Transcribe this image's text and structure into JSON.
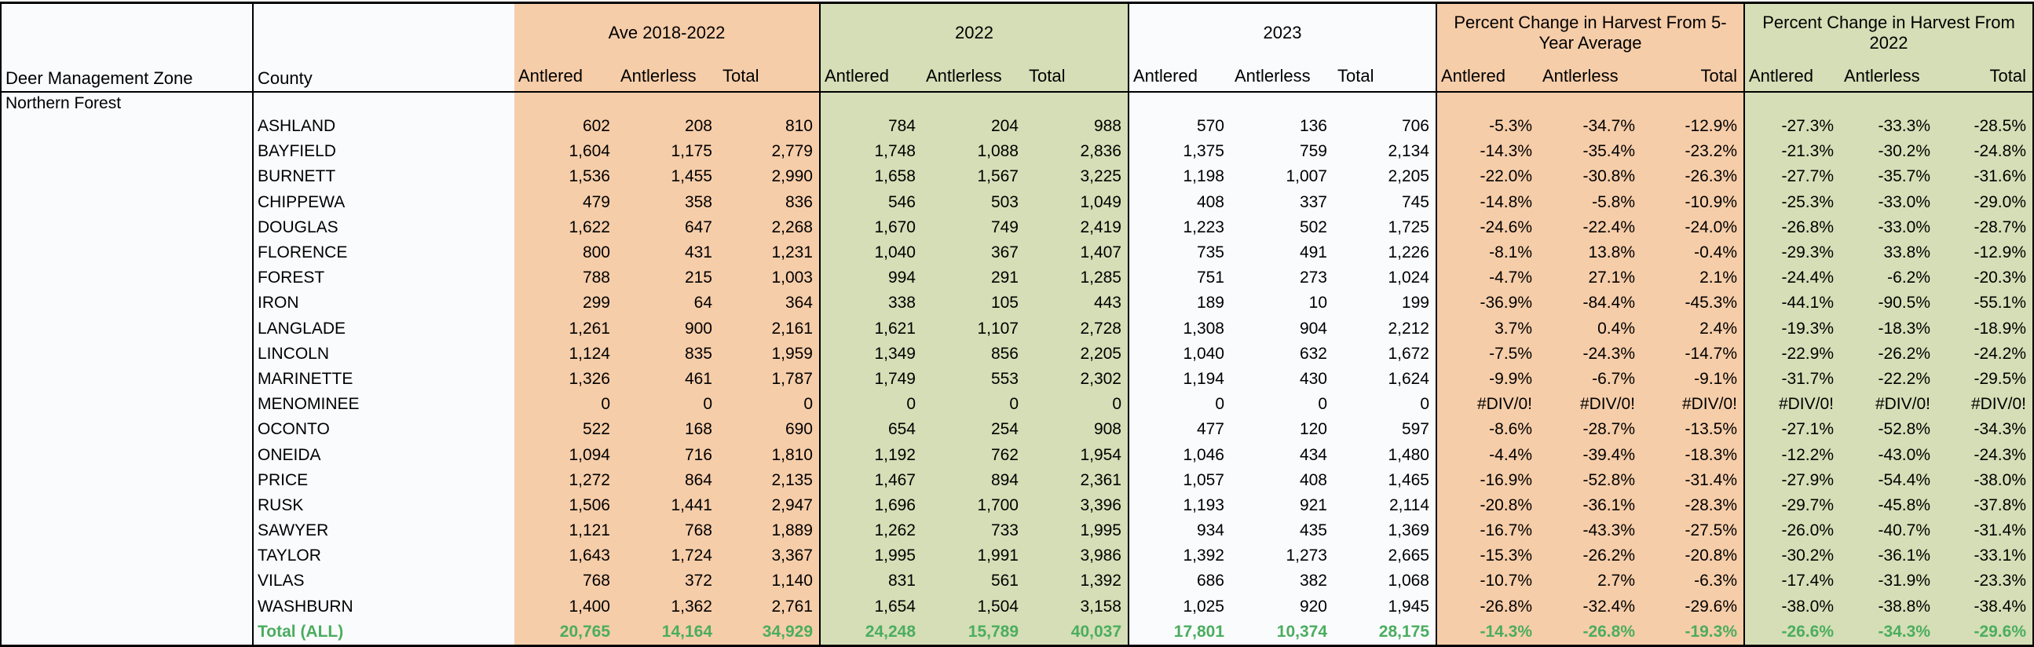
{
  "colors": {
    "orange": "#F6CDA9",
    "green": "#D5DEB6",
    "plain": "#FAFBFD",
    "total_text": "#4BAD5F",
    "border": "#000000"
  },
  "table": {
    "zone_header": "Deer Management Zone",
    "county_header": "County",
    "zone_name": "Northern Forest",
    "col_labels": {
      "antlered": "Antlered",
      "antlerless": "Antlerless",
      "total": "Total"
    },
    "groups": [
      {
        "title": "Ave 2018-2022"
      },
      {
        "title": "2022"
      },
      {
        "title": "2023"
      },
      {
        "title": "Percent Change in Harvest From 5-Year Average"
      },
      {
        "title": "Percent Change in Harvest From 2022"
      }
    ],
    "rows": [
      {
        "county": "ASHLAND",
        "ave": [
          "602",
          "208",
          "810"
        ],
        "h2022": [
          "784",
          "204",
          "988"
        ],
        "h2023": [
          "570",
          "136",
          "706"
        ],
        "pct_vs_5yr": [
          "-5.3%",
          "-34.7%",
          "-12.9%"
        ],
        "pct_vs_2022": [
          "-27.3%",
          "-33.3%",
          "-28.5%"
        ]
      },
      {
        "county": "BAYFIELD",
        "ave": [
          "1,604",
          "1,175",
          "2,779"
        ],
        "h2022": [
          "1,748",
          "1,088",
          "2,836"
        ],
        "h2023": [
          "1,375",
          "759",
          "2,134"
        ],
        "pct_vs_5yr": [
          "-14.3%",
          "-35.4%",
          "-23.2%"
        ],
        "pct_vs_2022": [
          "-21.3%",
          "-30.2%",
          "-24.8%"
        ]
      },
      {
        "county": "BURNETT",
        "ave": [
          "1,536",
          "1,455",
          "2,990"
        ],
        "h2022": [
          "1,658",
          "1,567",
          "3,225"
        ],
        "h2023": [
          "1,198",
          "1,007",
          "2,205"
        ],
        "pct_vs_5yr": [
          "-22.0%",
          "-30.8%",
          "-26.3%"
        ],
        "pct_vs_2022": [
          "-27.7%",
          "-35.7%",
          "-31.6%"
        ]
      },
      {
        "county": "CHIPPEWA",
        "ave": [
          "479",
          "358",
          "836"
        ],
        "h2022": [
          "546",
          "503",
          "1,049"
        ],
        "h2023": [
          "408",
          "337",
          "745"
        ],
        "pct_vs_5yr": [
          "-14.8%",
          "-5.8%",
          "-10.9%"
        ],
        "pct_vs_2022": [
          "-25.3%",
          "-33.0%",
          "-29.0%"
        ]
      },
      {
        "county": "DOUGLAS",
        "ave": [
          "1,622",
          "647",
          "2,268"
        ],
        "h2022": [
          "1,670",
          "749",
          "2,419"
        ],
        "h2023": [
          "1,223",
          "502",
          "1,725"
        ],
        "pct_vs_5yr": [
          "-24.6%",
          "-22.4%",
          "-24.0%"
        ],
        "pct_vs_2022": [
          "-26.8%",
          "-33.0%",
          "-28.7%"
        ]
      },
      {
        "county": "FLORENCE",
        "ave": [
          "800",
          "431",
          "1,231"
        ],
        "h2022": [
          "1,040",
          "367",
          "1,407"
        ],
        "h2023": [
          "735",
          "491",
          "1,226"
        ],
        "pct_vs_5yr": [
          "-8.1%",
          "13.8%",
          "-0.4%"
        ],
        "pct_vs_2022": [
          "-29.3%",
          "33.8%",
          "-12.9%"
        ]
      },
      {
        "county": "FOREST",
        "ave": [
          "788",
          "215",
          "1,003"
        ],
        "h2022": [
          "994",
          "291",
          "1,285"
        ],
        "h2023": [
          "751",
          "273",
          "1,024"
        ],
        "pct_vs_5yr": [
          "-4.7%",
          "27.1%",
          "2.1%"
        ],
        "pct_vs_2022": [
          "-24.4%",
          "-6.2%",
          "-20.3%"
        ]
      },
      {
        "county": "IRON",
        "ave": [
          "299",
          "64",
          "364"
        ],
        "h2022": [
          "338",
          "105",
          "443"
        ],
        "h2023": [
          "189",
          "10",
          "199"
        ],
        "pct_vs_5yr": [
          "-36.9%",
          "-84.4%",
          "-45.3%"
        ],
        "pct_vs_2022": [
          "-44.1%",
          "-90.5%",
          "-55.1%"
        ]
      },
      {
        "county": "LANGLADE",
        "ave": [
          "1,261",
          "900",
          "2,161"
        ],
        "h2022": [
          "1,621",
          "1,107",
          "2,728"
        ],
        "h2023": [
          "1,308",
          "904",
          "2,212"
        ],
        "pct_vs_5yr": [
          "3.7%",
          "0.4%",
          "2.4%"
        ],
        "pct_vs_2022": [
          "-19.3%",
          "-18.3%",
          "-18.9%"
        ]
      },
      {
        "county": "LINCOLN",
        "ave": [
          "1,124",
          "835",
          "1,959"
        ],
        "h2022": [
          "1,349",
          "856",
          "2,205"
        ],
        "h2023": [
          "1,040",
          "632",
          "1,672"
        ],
        "pct_vs_5yr": [
          "-7.5%",
          "-24.3%",
          "-14.7%"
        ],
        "pct_vs_2022": [
          "-22.9%",
          "-26.2%",
          "-24.2%"
        ]
      },
      {
        "county": "MARINETTE",
        "ave": [
          "1,326",
          "461",
          "1,787"
        ],
        "h2022": [
          "1,749",
          "553",
          "2,302"
        ],
        "h2023": [
          "1,194",
          "430",
          "1,624"
        ],
        "pct_vs_5yr": [
          "-9.9%",
          "-6.7%",
          "-9.1%"
        ],
        "pct_vs_2022": [
          "-31.7%",
          "-22.2%",
          "-29.5%"
        ]
      },
      {
        "county": "MENOMINEE",
        "ave": [
          "0",
          "0",
          "0"
        ],
        "h2022": [
          "0",
          "0",
          "0"
        ],
        "h2023": [
          "0",
          "0",
          "0"
        ],
        "pct_vs_5yr": [
          "#DIV/0!",
          "#DIV/0!",
          "#DIV/0!"
        ],
        "pct_vs_2022": [
          "#DIV/0!",
          "#DIV/0!",
          "#DIV/0!"
        ]
      },
      {
        "county": "OCONTO",
        "ave": [
          "522",
          "168",
          "690"
        ],
        "h2022": [
          "654",
          "254",
          "908"
        ],
        "h2023": [
          "477",
          "120",
          "597"
        ],
        "pct_vs_5yr": [
          "-8.6%",
          "-28.7%",
          "-13.5%"
        ],
        "pct_vs_2022": [
          "-27.1%",
          "-52.8%",
          "-34.3%"
        ]
      },
      {
        "county": "ONEIDA",
        "ave": [
          "1,094",
          "716",
          "1,810"
        ],
        "h2022": [
          "1,192",
          "762",
          "1,954"
        ],
        "h2023": [
          "1,046",
          "434",
          "1,480"
        ],
        "pct_vs_5yr": [
          "-4.4%",
          "-39.4%",
          "-18.3%"
        ],
        "pct_vs_2022": [
          "-12.2%",
          "-43.0%",
          "-24.3%"
        ]
      },
      {
        "county": "PRICE",
        "ave": [
          "1,272",
          "864",
          "2,135"
        ],
        "h2022": [
          "1,467",
          "894",
          "2,361"
        ],
        "h2023": [
          "1,057",
          "408",
          "1,465"
        ],
        "pct_vs_5yr": [
          "-16.9%",
          "-52.8%",
          "-31.4%"
        ],
        "pct_vs_2022": [
          "-27.9%",
          "-54.4%",
          "-38.0%"
        ]
      },
      {
        "county": "RUSK",
        "ave": [
          "1,506",
          "1,441",
          "2,947"
        ],
        "h2022": [
          "1,696",
          "1,700",
          "3,396"
        ],
        "h2023": [
          "1,193",
          "921",
          "2,114"
        ],
        "pct_vs_5yr": [
          "-20.8%",
          "-36.1%",
          "-28.3%"
        ],
        "pct_vs_2022": [
          "-29.7%",
          "-45.8%",
          "-37.8%"
        ]
      },
      {
        "county": "SAWYER",
        "ave": [
          "1,121",
          "768",
          "1,889"
        ],
        "h2022": [
          "1,262",
          "733",
          "1,995"
        ],
        "h2023": [
          "934",
          "435",
          "1,369"
        ],
        "pct_vs_5yr": [
          "-16.7%",
          "-43.3%",
          "-27.5%"
        ],
        "pct_vs_2022": [
          "-26.0%",
          "-40.7%",
          "-31.4%"
        ]
      },
      {
        "county": "TAYLOR",
        "ave": [
          "1,643",
          "1,724",
          "3,367"
        ],
        "h2022": [
          "1,995",
          "1,991",
          "3,986"
        ],
        "h2023": [
          "1,392",
          "1,273",
          "2,665"
        ],
        "pct_vs_5yr": [
          "-15.3%",
          "-26.2%",
          "-20.8%"
        ],
        "pct_vs_2022": [
          "-30.2%",
          "-36.1%",
          "-33.1%"
        ]
      },
      {
        "county": "VILAS",
        "ave": [
          "768",
          "372",
          "1,140"
        ],
        "h2022": [
          "831",
          "561",
          "1,392"
        ],
        "h2023": [
          "686",
          "382",
          "1,068"
        ],
        "pct_vs_5yr": [
          "-10.7%",
          "2.7%",
          "-6.3%"
        ],
        "pct_vs_2022": [
          "-17.4%",
          "-31.9%",
          "-23.3%"
        ]
      },
      {
        "county": "WASHBURN",
        "ave": [
          "1,400",
          "1,362",
          "2,761"
        ],
        "h2022": [
          "1,654",
          "1,504",
          "3,158"
        ],
        "h2023": [
          "1,025",
          "920",
          "1,945"
        ],
        "pct_vs_5yr": [
          "-26.8%",
          "-32.4%",
          "-29.6%"
        ],
        "pct_vs_2022": [
          "-38.0%",
          "-38.8%",
          "-38.4%"
        ]
      },
      {
        "county": "Total (ALL)",
        "is_total": true,
        "ave": [
          "20,765",
          "14,164",
          "34,929"
        ],
        "h2022": [
          "24,248",
          "15,789",
          "40,037"
        ],
        "h2023": [
          "17,801",
          "10,374",
          "28,175"
        ],
        "pct_vs_5yr": [
          "-14.3%",
          "-26.8%",
          "-19.3%"
        ],
        "pct_vs_2022": [
          "-26.6%",
          "-34.3%",
          "-29.6%"
        ]
      }
    ]
  }
}
